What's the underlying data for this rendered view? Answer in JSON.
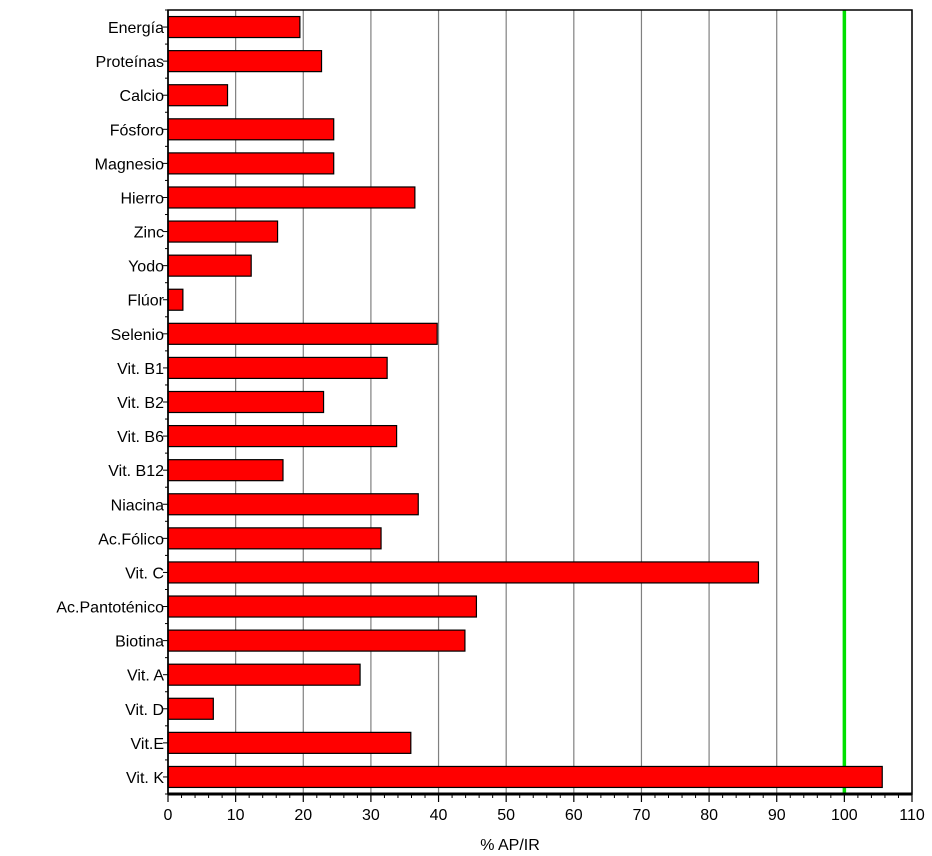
{
  "chart_data": {
    "type": "bar",
    "orientation": "horizontal",
    "categories": [
      "Energía",
      "Proteínas",
      "Calcio",
      "Fósforo",
      "Magnesio",
      "Hierro",
      "Zinc",
      "Yodo",
      "Flúor",
      "Selenio",
      "Vit. B1",
      "Vit. B2",
      "Vit. B6",
      "Vit. B12",
      "Niacina",
      "Ac.Fólico",
      "Vit. C",
      "Ac.Pantoténico",
      "Biotina",
      "Vit. A",
      "Vit. D",
      "Vit.E",
      "Vit. K"
    ],
    "values": [
      19.5,
      22.7,
      8.8,
      24.5,
      24.5,
      36.5,
      16.2,
      12.3,
      2.2,
      39.8,
      32.4,
      23.0,
      33.8,
      17.0,
      37.0,
      31.5,
      87.3,
      45.6,
      43.9,
      28.4,
      6.7,
      35.9,
      105.6
    ],
    "xlabel": "% AP/IR",
    "ylabel": "",
    "xlim": [
      0,
      110
    ],
    "xticks": [
      0,
      10,
      20,
      30,
      40,
      50,
      60,
      70,
      80,
      90,
      100,
      110
    ],
    "grid": "vertical",
    "reference_line": {
      "value": 100,
      "color": "#00e000"
    },
    "colors": {
      "bar_fill": "#ff0000",
      "bar_stroke": "#000000",
      "grid": "#808080"
    }
  }
}
